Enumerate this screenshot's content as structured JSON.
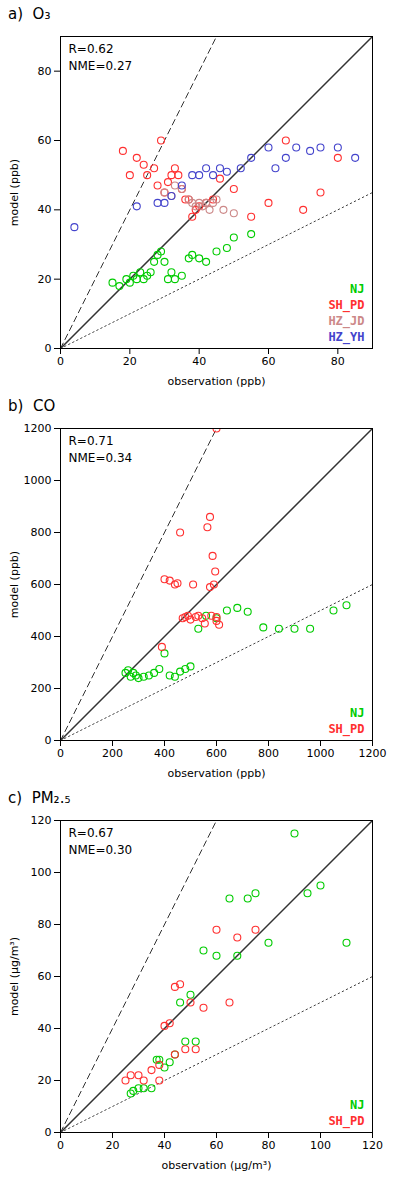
{
  "chart_data": [
    {
      "type": "scatter",
      "title": "a)  O₃",
      "xlabel": "observation (ppb)",
      "ylabel": "model (ppb)",
      "annotations": [
        "R=0.62",
        "NME=0.27"
      ],
      "xlim": [
        0,
        90
      ],
      "ylim": [
        0,
        90
      ],
      "xticks": [
        0,
        20,
        40,
        60,
        80
      ],
      "yticks": [
        0,
        20,
        40,
        60,
        80
      ],
      "legend": "lower right",
      "reference_lines": [
        {
          "slope": 2.0,
          "line_style": "dashed",
          "color": "#333333"
        },
        {
          "slope": 1.0,
          "line_style": "solid",
          "color": "#333333"
        },
        {
          "slope": 0.5,
          "line_style": "dotted",
          "color": "#444444"
        }
      ],
      "series": [
        {
          "name": "NJ",
          "color": "#00cc00",
          "x": [
            15,
            17,
            19,
            20,
            21,
            22,
            23,
            24,
            25,
            26,
            27,
            28,
            29,
            30,
            31,
            32,
            33,
            35,
            37,
            38,
            40,
            42,
            45,
            48,
            50,
            55
          ],
          "values": [
            19,
            18,
            20,
            19,
            21,
            20,
            22,
            20,
            21,
            22,
            25,
            27,
            28,
            25,
            20,
            22,
            20,
            21,
            26,
            27,
            26,
            25,
            28,
            29,
            32,
            33
          ]
        },
        {
          "name": "SH_PD",
          "color": "#ff3030",
          "x": [
            18,
            20,
            22,
            24,
            25,
            27,
            28,
            29,
            30,
            31,
            32,
            33,
            34,
            35,
            36,
            37,
            38,
            39,
            40,
            42,
            44,
            46,
            50,
            55,
            60,
            65,
            70,
            75,
            80
          ],
          "values": [
            57,
            50,
            55,
            53,
            50,
            52,
            47,
            60,
            45,
            48,
            50,
            52,
            50,
            46,
            43,
            43,
            38,
            40,
            41,
            42,
            43,
            49,
            46,
            38,
            42,
            60,
            40,
            45,
            55
          ]
        },
        {
          "name": "HZ_JD",
          "color": "#cc8888",
          "x": [
            30,
            32,
            33,
            35,
            37,
            38,
            39,
            40,
            41,
            42,
            43,
            44,
            45,
            47,
            50
          ],
          "values": [
            45,
            44,
            47,
            46,
            43,
            42,
            41,
            42,
            41,
            42,
            40,
            42,
            43,
            40,
            39
          ]
        },
        {
          "name": "HZ_YH",
          "color": "#4444cc",
          "x": [
            4,
            22,
            28,
            30,
            32,
            35,
            38,
            40,
            42,
            44,
            46,
            48,
            52,
            55,
            60,
            62,
            65,
            68,
            72,
            75,
            80,
            85
          ],
          "values": [
            35,
            41,
            42,
            42,
            44,
            47,
            50,
            50,
            52,
            50,
            52,
            51,
            52,
            55,
            58,
            52,
            55,
            58,
            57,
            58,
            58,
            55
          ]
        }
      ]
    },
    {
      "type": "scatter",
      "title": "b)  CO",
      "xlabel": "observation (ppb)",
      "ylabel": "model (ppb)",
      "annotations": [
        "R=0.71",
        "NME=0.34"
      ],
      "xlim": [
        0,
        1200
      ],
      "ylim": [
        0,
        1200
      ],
      "xticks": [
        0,
        200,
        400,
        600,
        800,
        1000,
        1200
      ],
      "yticks": [
        0,
        200,
        400,
        600,
        800,
        1000,
        1200
      ],
      "legend": "lower right",
      "reference_lines": [
        {
          "slope": 2.0,
          "line_style": "dashed",
          "color": "#333333"
        },
        {
          "slope": 1.0,
          "line_style": "solid",
          "color": "#333333"
        },
        {
          "slope": 0.5,
          "line_style": "dotted",
          "color": "#444444"
        }
      ],
      "series": [
        {
          "name": "NJ",
          "color": "#00cc00",
          "x": [
            250,
            260,
            270,
            280,
            290,
            300,
            320,
            340,
            360,
            380,
            400,
            420,
            440,
            460,
            480,
            500,
            530,
            560,
            600,
            640,
            680,
            720,
            780,
            840,
            900,
            960,
            1050,
            1100
          ],
          "values": [
            260,
            270,
            245,
            260,
            250,
            240,
            245,
            250,
            260,
            275,
            335,
            250,
            245,
            265,
            275,
            285,
            430,
            480,
            470,
            500,
            510,
            495,
            435,
            430,
            430,
            430,
            500,
            520
          ]
        },
        {
          "name": "SH_PD",
          "color": "#ff3030",
          "x": [
            390,
            400,
            420,
            440,
            450,
            460,
            470,
            480,
            490,
            500,
            510,
            520,
            530,
            545,
            555,
            565,
            575,
            585,
            595,
            600,
            590,
            575,
            610,
            580,
            600,
            600
          ],
          "values": [
            360,
            620,
            615,
            600,
            605,
            800,
            470,
            475,
            480,
            465,
            600,
            475,
            480,
            470,
            450,
            820,
            860,
            710,
            650,
            475,
            600,
            590,
            445,
            480,
            460,
            1200
          ]
        }
      ]
    },
    {
      "type": "scatter",
      "title": "c)  PM₂.₅",
      "xlabel": "observation (μg/m³)",
      "ylabel": "model (μg/m³)",
      "annotations": [
        "R=0.67",
        "NME=0.30"
      ],
      "xlim": [
        0,
        120
      ],
      "ylim": [
        0,
        120
      ],
      "xticks": [
        0,
        20,
        40,
        60,
        80,
        100,
        120
      ],
      "yticks": [
        0,
        20,
        40,
        60,
        80,
        100,
        120
      ],
      "legend": "lower right",
      "reference_lines": [
        {
          "slope": 2.0,
          "line_style": "dashed",
          "color": "#333333"
        },
        {
          "slope": 1.0,
          "line_style": "solid",
          "color": "#333333"
        },
        {
          "slope": 0.5,
          "line_style": "dotted",
          "color": "#444444"
        }
      ],
      "series": [
        {
          "name": "NJ",
          "color": "#00cc00",
          "x": [
            27,
            28,
            30,
            32,
            35,
            37,
            38,
            40,
            42,
            44,
            46,
            48,
            50,
            52,
            55,
            60,
            65,
            68,
            72,
            75,
            80,
            90,
            95,
            100,
            110
          ],
          "values": [
            15,
            16,
            17,
            17,
            17,
            28,
            28,
            25,
            27,
            30,
            50,
            35,
            53,
            35,
            70,
            68,
            90,
            68,
            90,
            92,
            73,
            115,
            92,
            95,
            73
          ]
        },
        {
          "name": "SH_PD",
          "color": "#ff3030",
          "x": [
            25,
            27,
            30,
            32,
            35,
            38,
            38,
            40,
            42,
            44,
            44,
            46,
            48,
            50,
            52,
            55,
            60,
            65,
            68,
            75
          ],
          "values": [
            20,
            22,
            22,
            20,
            24,
            20,
            26,
            41,
            42,
            30,
            56,
            57,
            32,
            50,
            32,
            48,
            78,
            50,
            75,
            78
          ]
        }
      ]
    }
  ]
}
